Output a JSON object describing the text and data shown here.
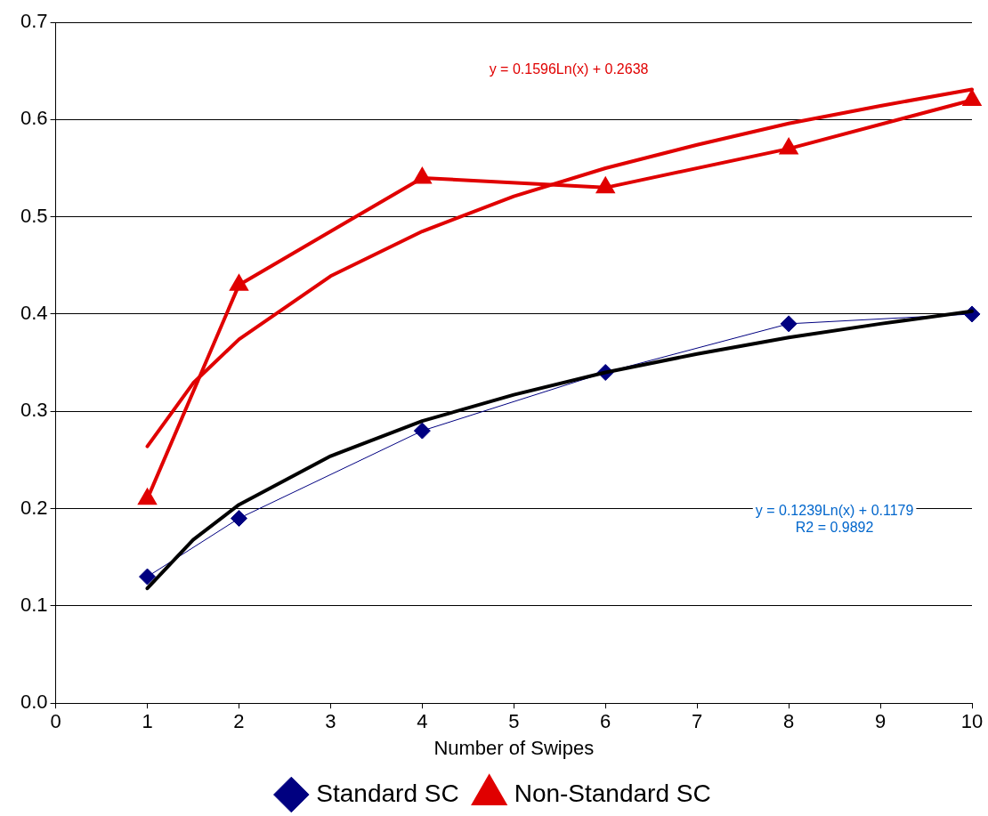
{
  "chart_data": {
    "type": "line",
    "xlabel": "Number of Swipes",
    "xlim": [
      0,
      10
    ],
    "xticks": [
      0,
      1,
      2,
      3,
      4,
      5,
      6,
      7,
      8,
      9,
      10
    ],
    "ylim": [
      0,
      0.7
    ],
    "yticks": [
      {
        "value": 0,
        "label": "0.0"
      },
      0.1,
      0.2,
      0.3,
      0.4,
      0.5,
      0.6,
      0.7
    ],
    "grid": "y",
    "legend": "bottom",
    "series": [
      {
        "name": "Standard SC",
        "color": "#000080",
        "marker": "diamond",
        "x": [
          1,
          2,
          4,
          6,
          8,
          10
        ],
        "values": [
          0.13,
          0.19,
          0.28,
          0.34,
          0.39,
          0.4
        ]
      },
      {
        "name": "Non-Standard SC",
        "color": "#e00000",
        "marker": "triangle",
        "x": [
          1,
          2,
          4,
          6,
          8,
          10
        ],
        "values": [
          0.21,
          0.43,
          0.54,
          0.53,
          0.57,
          0.62
        ]
      },
      {
        "color": "#000000",
        "marker": "none",
        "x": [
          1,
          1.5,
          2,
          3,
          4,
          5,
          6,
          7,
          8,
          9,
          10
        ],
        "values": [
          0.118,
          0.168,
          0.204,
          0.254,
          0.29,
          0.317,
          0.34,
          0.359,
          0.376,
          0.39,
          0.403
        ]
      },
      {
        "color": "#e00000",
        "marker": "none",
        "x": [
          1,
          1.5,
          2,
          3,
          4,
          5,
          6,
          7,
          8,
          9,
          10
        ],
        "values": [
          0.264,
          0.329,
          0.374,
          0.439,
          0.485,
          0.521,
          0.55,
          0.574,
          0.596,
          0.614,
          0.631
        ]
      }
    ],
    "annotations": [
      "y = 0.1596Ln(x) + 0.2638",
      "y = 0.1239Ln(x) + 0.1179",
      "R2 = 0.9892"
    ]
  }
}
